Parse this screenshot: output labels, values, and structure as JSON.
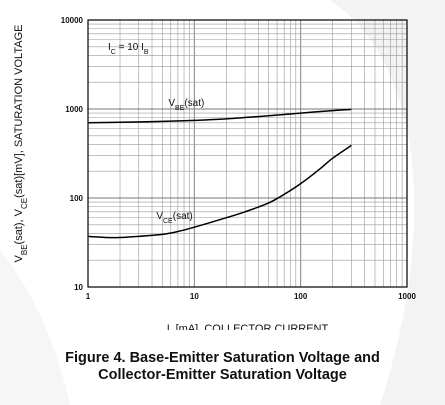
{
  "chart_data": {
    "type": "line",
    "x_scale": "log",
    "y_scale": "log",
    "xlim": [
      1,
      1000
    ],
    "ylim": [
      10,
      10000
    ],
    "x_tick_labels": [
      "1",
      "10",
      "100",
      "1000"
    ],
    "y_tick_labels": [
      "10",
      "100",
      "1000",
      "10000"
    ],
    "grid": true,
    "xlabel": {
      "base": "I",
      "sub": "C",
      "rest": "[mA], COLLECTOR CURRENT"
    },
    "ylabel": {
      "parts": [
        {
          "t": "V"
        },
        {
          "t": "BE",
          "sub": true
        },
        {
          "t": "(sat), V"
        },
        {
          "t": "CE",
          "sub": true
        },
        {
          "t": "(sat)[mV], SATURATION VOLTAGE"
        }
      ]
    },
    "condition": {
      "parts": [
        {
          "t": "I"
        },
        {
          "t": "C",
          "sub": true
        },
        {
          "t": " = 10 I"
        },
        {
          "t": "B",
          "sub": true
        }
      ]
    },
    "series": [
      {
        "name": "V_BE(sat)",
        "label_parts": [
          {
            "t": "V"
          },
          {
            "t": "BE",
            "sub": true
          },
          {
            "t": "(sat)"
          }
        ],
        "x": [
          1,
          2,
          5,
          10,
          20,
          50,
          100,
          200,
          300
        ],
        "y": [
          700,
          710,
          725,
          745,
          775,
          840,
          900,
          960,
          990
        ]
      },
      {
        "name": "V_CE(sat)",
        "label_parts": [
          {
            "t": "V"
          },
          {
            "t": "CE",
            "sub": true
          },
          {
            "t": "(sat)"
          }
        ],
        "x": [
          1,
          1.5,
          2,
          3,
          5,
          7,
          10,
          20,
          30,
          50,
          70,
          100,
          150,
          200,
          300
        ],
        "y": [
          37,
          36,
          36,
          37,
          39,
          42,
          47,
          60,
          70,
          88,
          110,
          145,
          210,
          280,
          390
        ]
      }
    ]
  },
  "caption": {
    "line1": "Figure 4. Base-Emitter Saturation Voltage and",
    "line2": "Collector-Emitter Saturation Voltage"
  }
}
